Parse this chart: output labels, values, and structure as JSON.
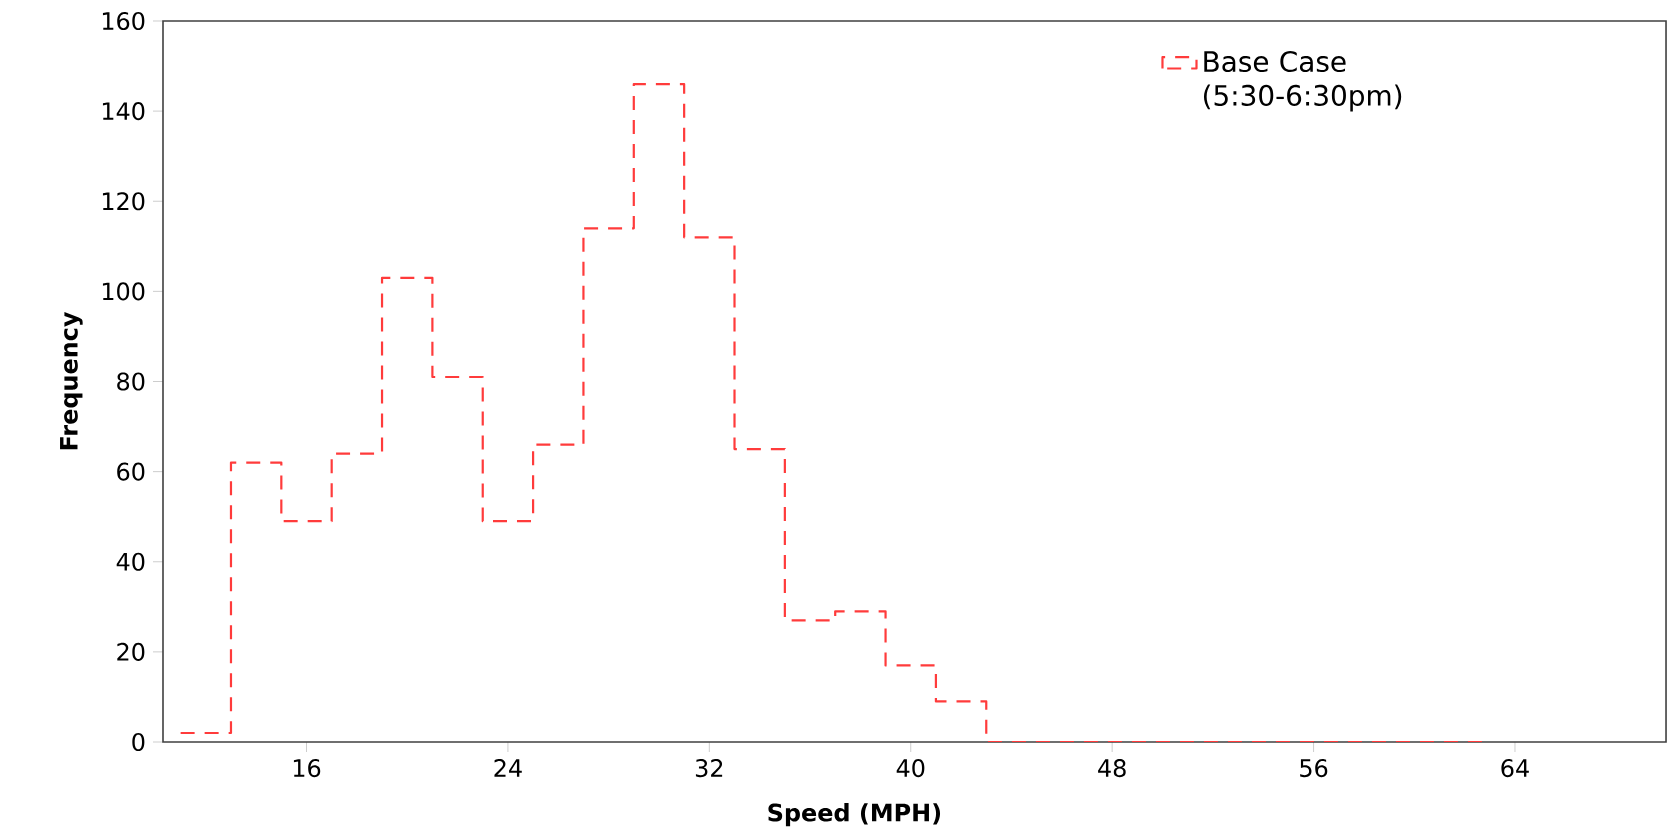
{
  "chart_data": {
    "type": "histogram",
    "xlabel": "Speed (MPH)",
    "ylabel": "Frequency",
    "bins": [
      11,
      13,
      15,
      17,
      19,
      21,
      23,
      25,
      27,
      29,
      31,
      33,
      35,
      37,
      39,
      41,
      43,
      45,
      47,
      49,
      51,
      53,
      55,
      57,
      59,
      61,
      63
    ],
    "series": [
      {
        "name": "Base Case (5:30-6:30pm)",
        "color": "#ff3b3b",
        "line_style": "dashed",
        "values": [
          2,
          62,
          49,
          64,
          103,
          81,
          49,
          66,
          114,
          146,
          112,
          65,
          27,
          29,
          17,
          9,
          0,
          0,
          0,
          0,
          0,
          0,
          0,
          0,
          0,
          0
        ]
      }
    ],
    "xlim": [
      10.3,
      70
    ],
    "ylim": [
      0,
      160
    ],
    "xticks": [
      16,
      24,
      32,
      40,
      48,
      56,
      64
    ],
    "yticks": [
      0,
      20,
      40,
      60,
      80,
      100,
      120,
      140,
      160
    ],
    "legend": "top right"
  }
}
